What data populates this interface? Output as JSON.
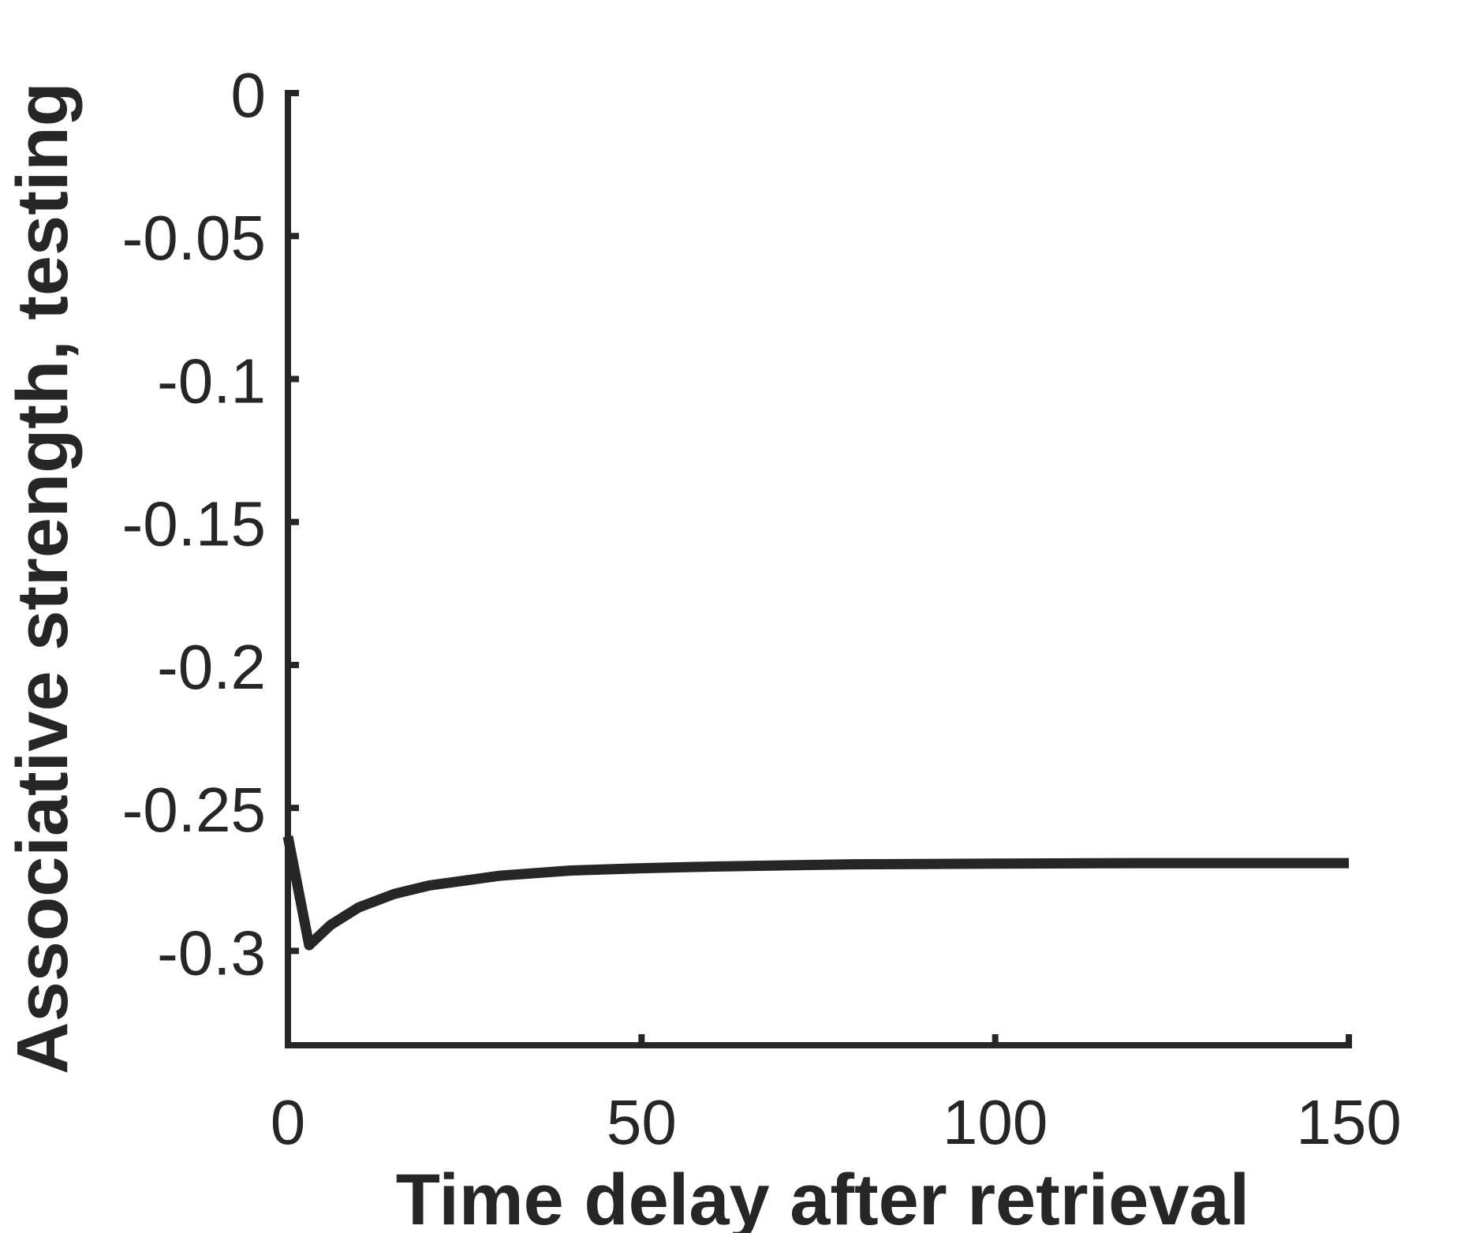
{
  "chart_data": {
    "type": "line",
    "title": "",
    "xlabel": "Time delay after retrieval",
    "ylabel": "Associative strength, testing",
    "xlim": [
      0,
      150
    ],
    "ylim": [
      -0.333,
      0
    ],
    "xticks": [
      0,
      50,
      100,
      150
    ],
    "xtick_labels": [
      "0",
      "50",
      "100",
      "150"
    ],
    "yticks": [
      0,
      -0.05,
      -0.1,
      -0.15,
      -0.2,
      -0.25,
      -0.3
    ],
    "ytick_labels": [
      "0",
      "-0.05",
      "-0.1",
      "-0.15",
      "-0.2",
      "-0.25",
      "-0.3"
    ],
    "grid": false,
    "legend": "none",
    "colors": {
      "line": "#262626",
      "axis": "#262626",
      "background": "#ffffff"
    },
    "series": [
      {
        "x": [
          0,
          3,
          6,
          10,
          15,
          20,
          30,
          40,
          50,
          60,
          80,
          100,
          120,
          150
        ],
        "y": [
          -0.26,
          -0.298,
          -0.291,
          -0.2848,
          -0.2801,
          -0.2771,
          -0.2737,
          -0.2719,
          -0.2711,
          -0.2705,
          -0.2697,
          -0.2695,
          -0.2693,
          -0.2693
        ]
      }
    ]
  }
}
